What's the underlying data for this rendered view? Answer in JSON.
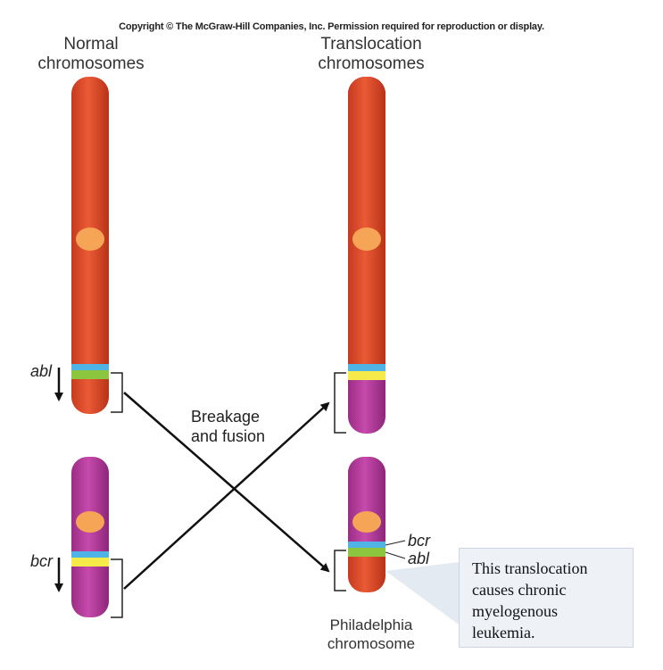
{
  "copyright": "Copyright © The McGraw-Hill Companies, Inc. Permission required for reproduction or display.",
  "headings": {
    "normal": [
      "Normal",
      "chromosomes"
    ],
    "translocation": [
      "Translocation",
      "chromosomes"
    ]
  },
  "genes": {
    "abl": "abl",
    "bcr": "bcr"
  },
  "process": [
    "Breakage",
    "and fusion"
  ],
  "philadelphia": [
    "Philadelphia",
    "chromosome"
  ],
  "callout": "This translocation causes chronic myelogenous leukemia.",
  "colors": {
    "chr9": "#e14a2a",
    "chr22": "#b4399a",
    "centromere": "#f6a455",
    "band_blue": "#4fb3e6",
    "band_green": "#8cc63e",
    "band_yellow": "#f5ea4a"
  }
}
